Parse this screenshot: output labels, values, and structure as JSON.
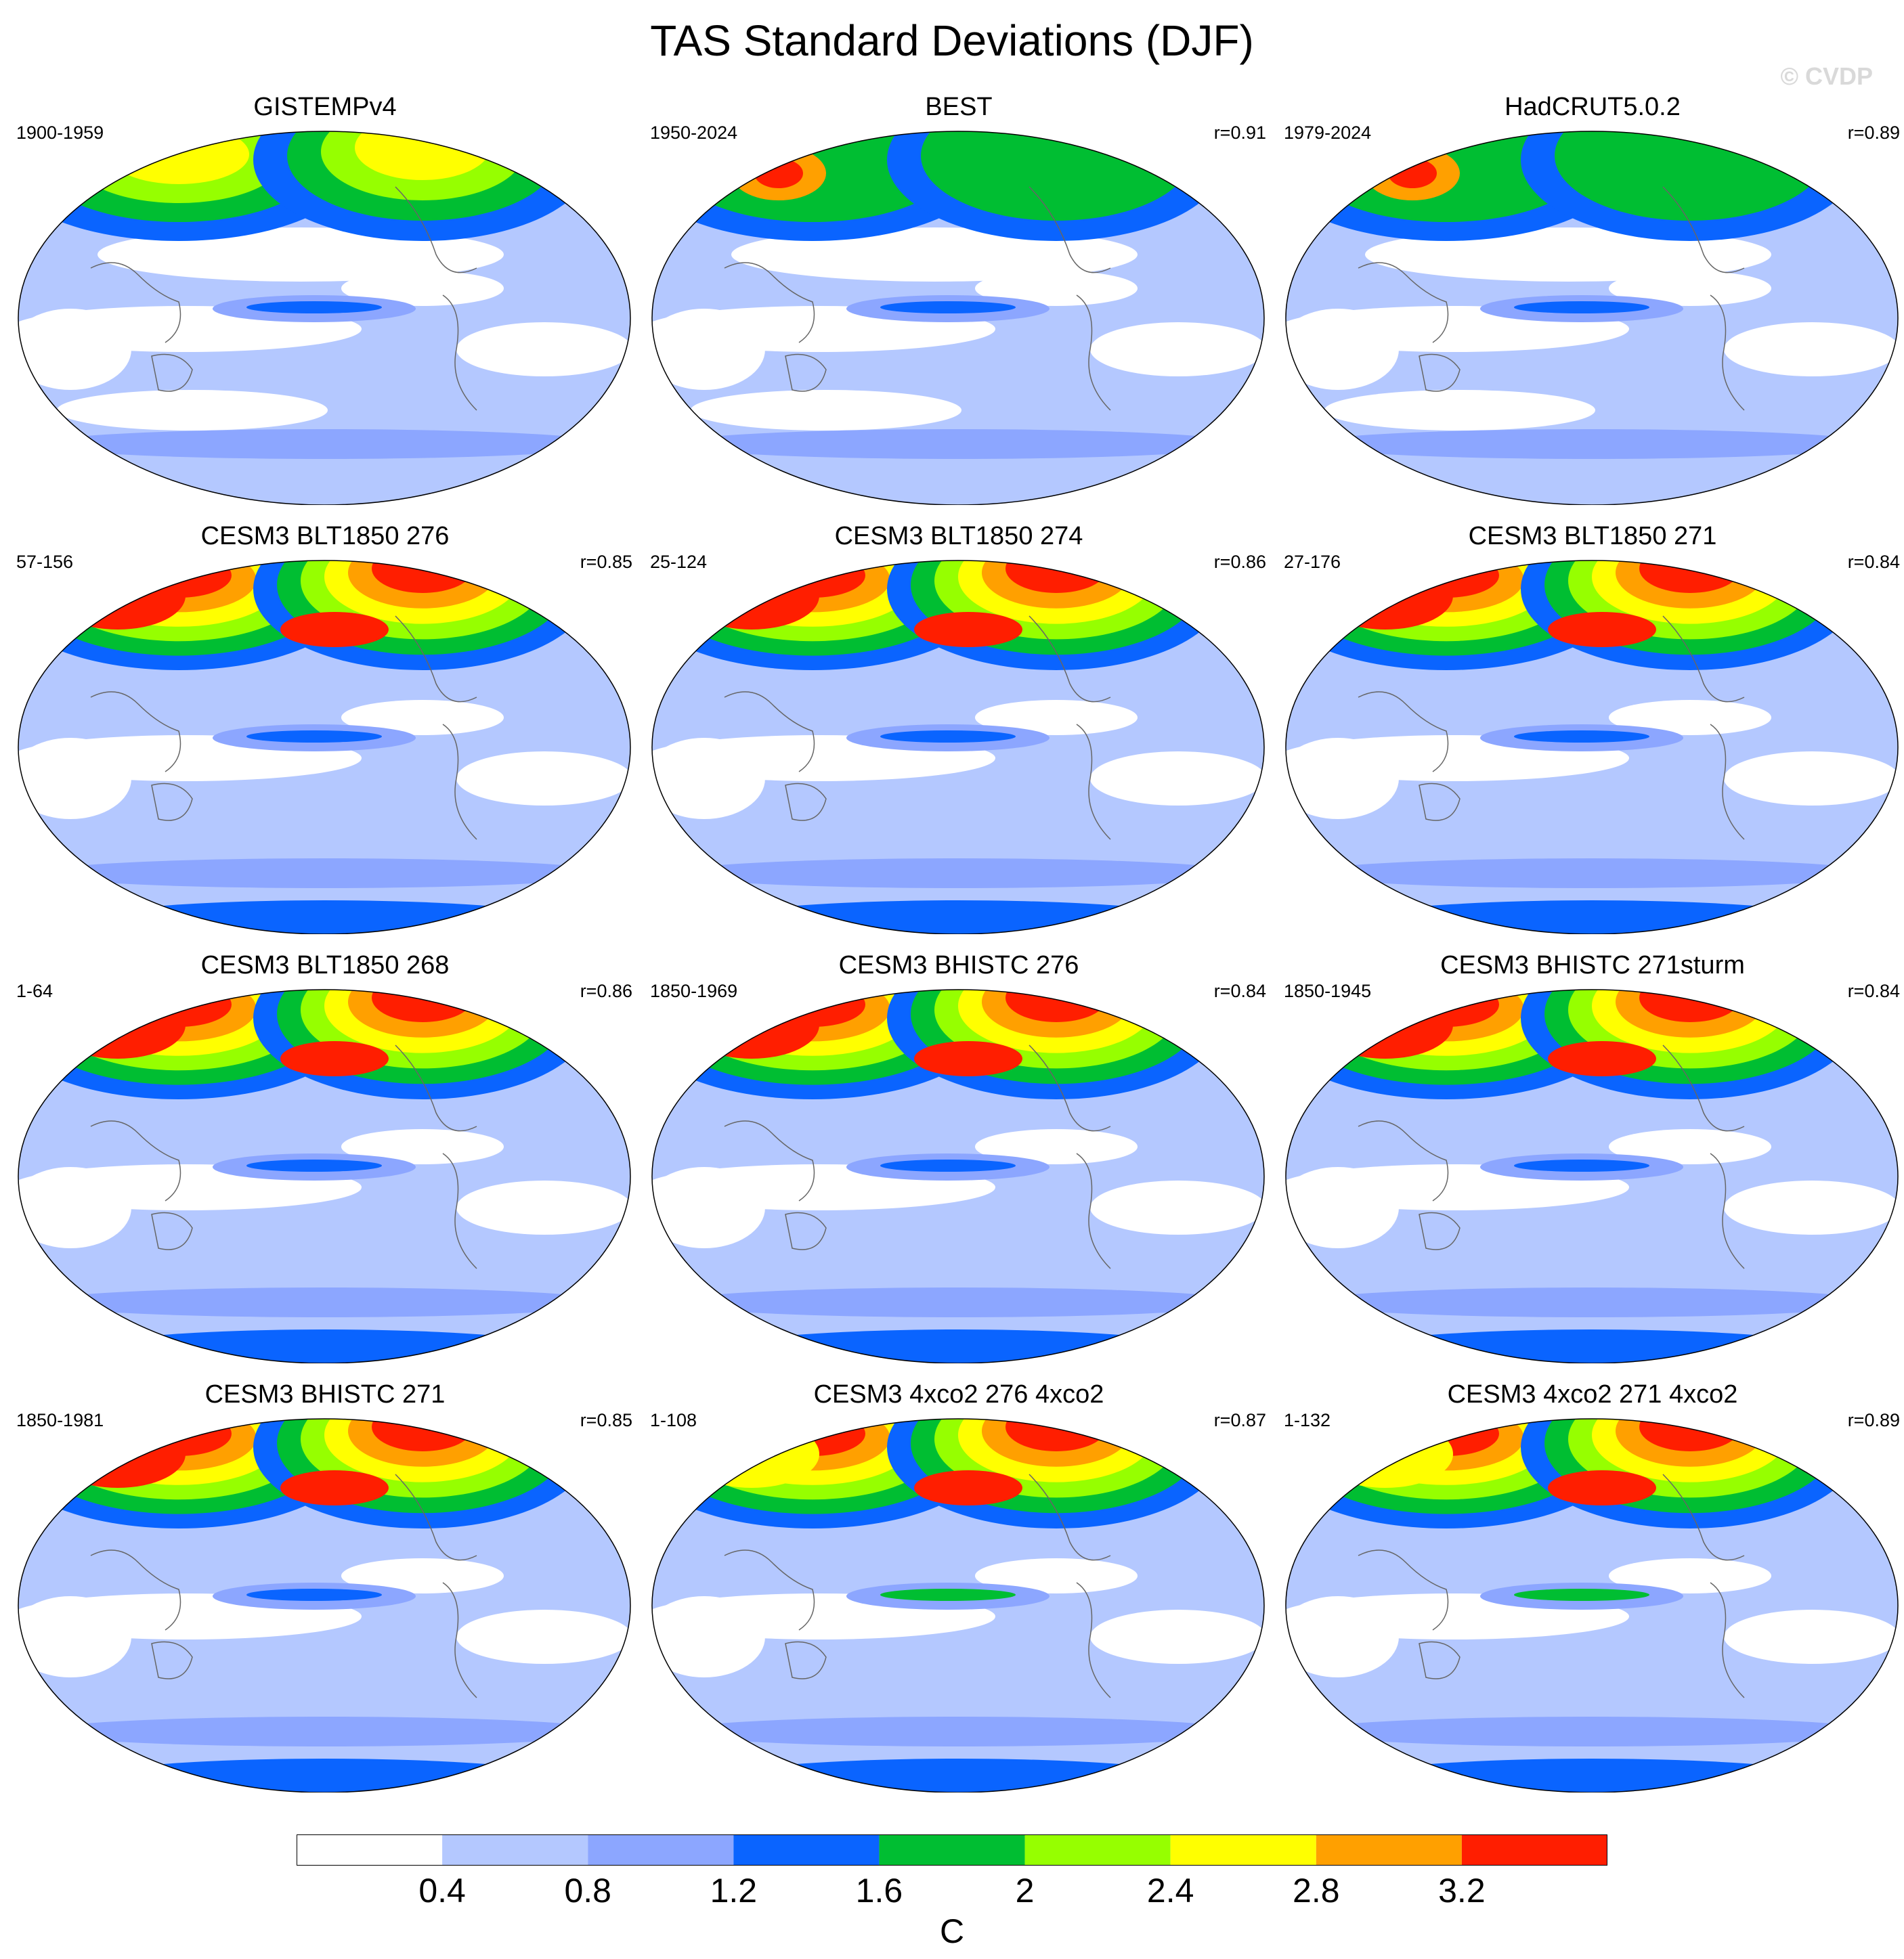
{
  "figure": {
    "title": "TAS Standard Deviations (DJF)",
    "watermark": "© CVDP"
  },
  "panels": [
    {
      "title": "GISTEMPv4",
      "period": "1900-1959",
      "corr": "",
      "variant": "obs1"
    },
    {
      "title": "BEST",
      "period": "1950-2024",
      "corr": "r=0.91",
      "variant": "obs2"
    },
    {
      "title": "HadCRUT5.0.2",
      "period": "1979-2024",
      "corr": "r=0.89",
      "variant": "obs3"
    },
    {
      "title": "CESM3 BLT1850 276",
      "period": "57-156",
      "corr": "r=0.85",
      "variant": "model"
    },
    {
      "title": "CESM3 BLT1850 274",
      "period": "25-124",
      "corr": "r=0.86",
      "variant": "model"
    },
    {
      "title": "CESM3 BLT1850 271",
      "period": "27-176",
      "corr": "r=0.84",
      "variant": "model"
    },
    {
      "title": "CESM3 BLT1850 268",
      "period": "1-64",
      "corr": "r=0.86",
      "variant": "model"
    },
    {
      "title": "CESM3 BHISTC 276",
      "period": "1850-1969",
      "corr": "r=0.84",
      "variant": "model"
    },
    {
      "title": "CESM3 BHISTC 271sturm",
      "period": "1850-1945",
      "corr": "r=0.84",
      "variant": "model"
    },
    {
      "title": "CESM3 BHISTC 271",
      "period": "1850-1981",
      "corr": "r=0.85",
      "variant": "model"
    },
    {
      "title": "CESM3 4xco2 276 4xco2",
      "period": "1-108",
      "corr": "r=0.87",
      "variant": "co2"
    },
    {
      "title": "CESM3 4xco2 271 4xco2",
      "period": "1-132",
      "corr": "r=0.89",
      "variant": "co2"
    }
  ],
  "colorbar": {
    "colors": [
      "#ffffff",
      "#b4c8ff",
      "#8ca6ff",
      "#0a64ff",
      "#00be32",
      "#96ff00",
      "#ffff00",
      "#ffa000",
      "#ff1e00"
    ],
    "labels": [
      "0.4",
      "0.8",
      "1.2",
      "1.6",
      "2",
      "2.4",
      "2.8",
      "3.2"
    ],
    "unit": "C"
  }
}
